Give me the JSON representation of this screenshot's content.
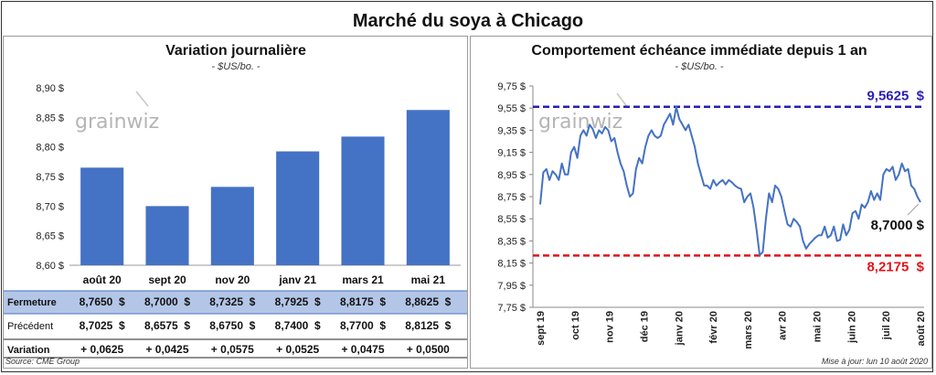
{
  "title": "Marché du soya à Chicago",
  "watermark": "grainwiz",
  "footer": {
    "source": "Source: CME Group",
    "updated": "Mise à jour: lun 10 août 2020"
  },
  "colors": {
    "bar": "#4472c4",
    "line": "#4472c4",
    "high": "#2a1fb5",
    "low": "#e0141b",
    "blue_text": "#1f3fb3",
    "green_text": "#1a8a1a",
    "row_highlight": "#b4c6e7"
  },
  "chart_data": [
    {
      "type": "bar",
      "title": "Variation journalière",
      "subtitle": "- $US/bo. -",
      "categories": [
        "août 20",
        "sept 20",
        "nov 20",
        "janv 21",
        "mars 21",
        "mai 21"
      ],
      "values": [
        8.765,
        8.7,
        8.7325,
        8.7925,
        8.8175,
        8.8625
      ],
      "ylim": [
        8.6,
        8.9
      ],
      "yticks": [
        "8,60 $",
        "8,65 $",
        "8,70 $",
        "8,75 $",
        "8,80 $",
        "8,85 $",
        "8,90 $"
      ],
      "ytick_values": [
        8.6,
        8.65,
        8.7,
        8.75,
        8.8,
        8.85,
        8.9
      ],
      "grid": false,
      "table": {
        "rows": [
          {
            "label": "Fermeture",
            "values": [
              "8,7650  $",
              "8,7000  $",
              "8,7325  $",
              "8,7925  $",
              "8,8175  $",
              "8,8625  $"
            ]
          },
          {
            "label": "Précédent",
            "values": [
              "8,7025  $",
              "8,6575  $",
              "8,6750  $",
              "8,7400  $",
              "8,7700  $",
              "8,8125  $"
            ]
          },
          {
            "label": "Variation",
            "values": [
              "+ 0,0625",
              "+ 0,0425",
              "+ 0,0575",
              "+ 0,0525",
              "+ 0,0475",
              "+ 0,0500"
            ]
          }
        ]
      }
    },
    {
      "type": "line",
      "title": "Comportement  échéance immédiate depuis 1 an",
      "subtitle": "- $US/bo. -",
      "ylim": [
        7.75,
        9.75
      ],
      "yticks": [
        "7,75 $",
        "7,95 $",
        "8,15 $",
        "8,35 $",
        "8,55 $",
        "8,75 $",
        "8,95 $",
        "9,15 $",
        "9,35 $",
        "9,55 $",
        "9,75 $"
      ],
      "ytick_values": [
        7.75,
        7.95,
        8.15,
        8.35,
        8.55,
        8.75,
        8.95,
        9.15,
        9.35,
        9.55,
        9.75
      ],
      "xticks": [
        "sept 19",
        "oct 19",
        "nov 19",
        "déc 19",
        "janv 20",
        "févr 20",
        "mars 20",
        "avr 20",
        "mai 20",
        "juin 20",
        "juil 20",
        "août 20"
      ],
      "high": {
        "value": 9.5625,
        "label": "9,5625  $"
      },
      "low": {
        "value": 8.2175,
        "label": "8,2175  $"
      },
      "last": {
        "value": 8.7,
        "label": "8,7000 $"
      },
      "series": [
        {
          "values": [
            8.68,
            8.97,
            9.0,
            8.9,
            8.98,
            8.95,
            8.9,
            9.05,
            8.95,
            8.95,
            9.15,
            9.2,
            9.1,
            9.3,
            9.35,
            9.3,
            9.4,
            9.36,
            9.28,
            9.35,
            9.32,
            9.38,
            9.35,
            9.25,
            9.28,
            9.15,
            9.05,
            8.98,
            8.85,
            8.75,
            8.78,
            9.0,
            9.1,
            9.05,
            9.2,
            9.3,
            9.35,
            9.3,
            9.28,
            9.3,
            9.4,
            9.45,
            9.5,
            9.4,
            9.56,
            9.45,
            9.4,
            9.35,
            9.4,
            9.3,
            9.2,
            9.05,
            8.95,
            8.85,
            8.85,
            8.82,
            8.9,
            8.85,
            8.88,
            8.9,
            8.86,
            8.9,
            8.88,
            8.85,
            8.83,
            8.82,
            8.7,
            8.75,
            8.78,
            8.65,
            8.45,
            8.22,
            8.25,
            8.55,
            8.78,
            8.7,
            8.85,
            8.82,
            8.75,
            8.62,
            8.5,
            8.48,
            8.55,
            8.52,
            8.48,
            8.35,
            8.28,
            8.32,
            8.35,
            8.38,
            8.4,
            8.4,
            8.48,
            8.38,
            8.4,
            8.48,
            8.35,
            8.36,
            8.5,
            8.4,
            8.45,
            8.6,
            8.62,
            8.55,
            8.68,
            8.65,
            8.7,
            8.8,
            8.72,
            8.78,
            8.72,
            8.95,
            9.0,
            8.98,
            9.02,
            8.9,
            8.95,
            9.05,
            8.98,
            9.0,
            8.85,
            8.82,
            8.75,
            8.7
          ]
        }
      ]
    }
  ]
}
